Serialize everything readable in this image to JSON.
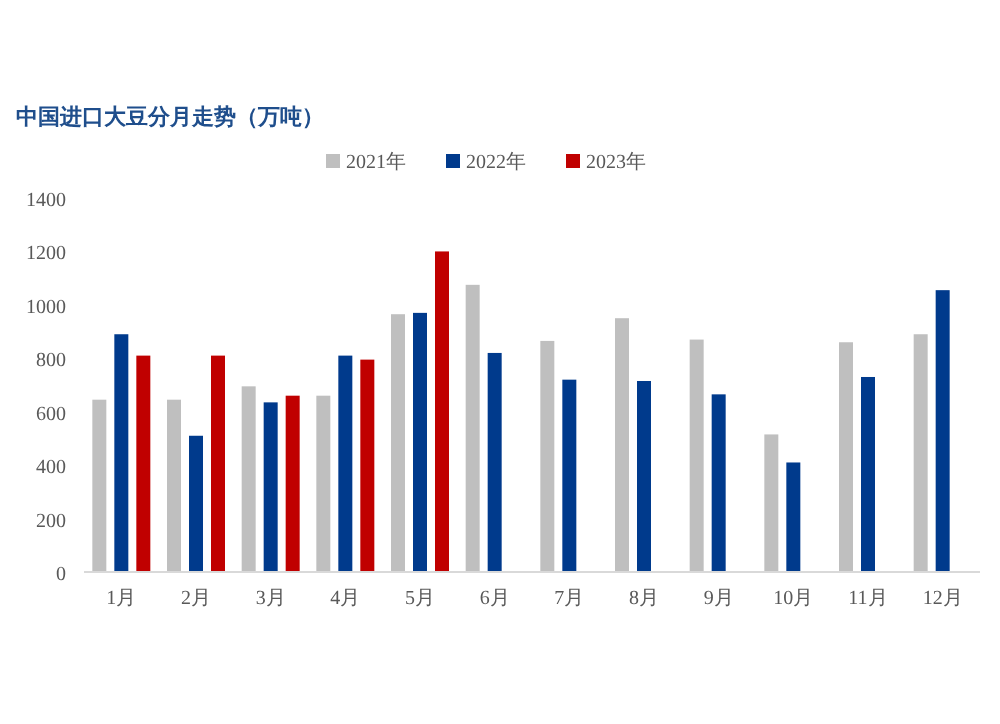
{
  "chart_data": {
    "type": "bar",
    "title": "中国进口大豆分月走势（万吨）",
    "categories": [
      "1月",
      "2月",
      "3月",
      "4月",
      "5月",
      "6月",
      "7月",
      "8月",
      "9月",
      "10月",
      "11月",
      "12月"
    ],
    "series": [
      {
        "name": "2021年",
        "color": "#bfbfbf",
        "values": [
          645,
          645,
          695,
          660,
          965,
          1075,
          865,
          950,
          870,
          515,
          860,
          890
        ]
      },
      {
        "name": "2022年",
        "color": "#003a8c",
        "values": [
          890,
          510,
          635,
          810,
          970,
          820,
          720,
          715,
          665,
          410,
          730,
          1055
        ]
      },
      {
        "name": "2023年",
        "color": "#c00000",
        "values": [
          810,
          810,
          660,
          795,
          1200,
          null,
          null,
          null,
          null,
          null,
          null,
          null
        ]
      }
    ],
    "ylim": [
      0,
      1400
    ],
    "yticks": [
      0,
      200,
      400,
      600,
      800,
      1000,
      1200,
      1400
    ],
    "grid": false,
    "legend": "top"
  }
}
